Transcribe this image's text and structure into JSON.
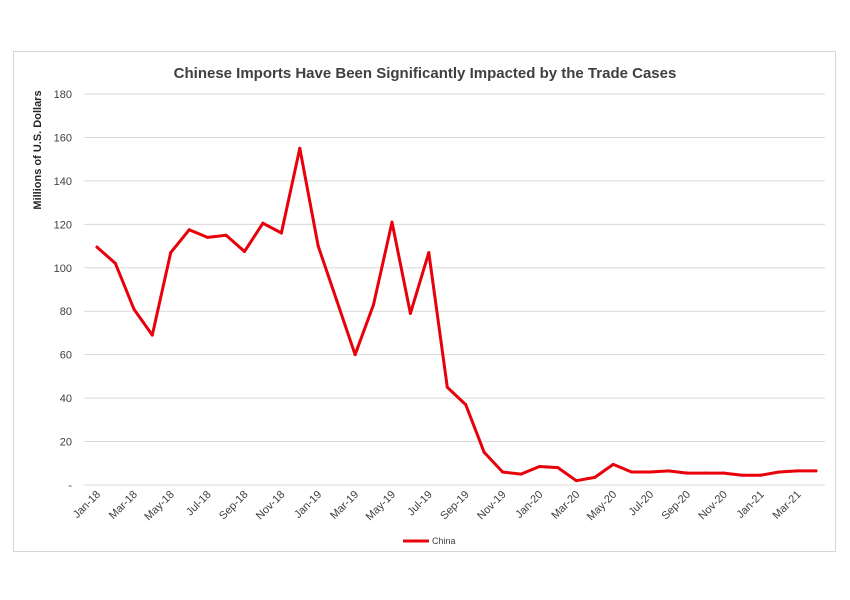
{
  "chart_data": {
    "type": "line",
    "title": "Chinese Imports Have Been Significantly Impacted by the Trade Cases",
    "xlabel": "",
    "ylabel": "Millions of U.S. Dollars",
    "ylim": [
      0,
      180
    ],
    "y_ticks": [
      "-",
      "20",
      "40",
      "60",
      "80",
      "100",
      "120",
      "140",
      "160",
      "180"
    ],
    "x_tick_labels": [
      "Jan-18",
      "Mar-18",
      "May-18",
      "Jul-18",
      "Sep-18",
      "Nov-18",
      "Jan-19",
      "Mar-19",
      "May-19",
      "Jul-19",
      "Sep-19",
      "Nov-19",
      "Jan-20",
      "Mar-20",
      "May-20",
      "Jul-20",
      "Sep-20",
      "Nov-20",
      "Jan-21",
      "Mar-21"
    ],
    "categories": [
      "Jan-18",
      "Feb-18",
      "Mar-18",
      "Apr-18",
      "May-18",
      "Jun-18",
      "Jul-18",
      "Aug-18",
      "Sep-18",
      "Oct-18",
      "Nov-18",
      "Dec-18",
      "Jan-19",
      "Feb-19",
      "Mar-19",
      "Apr-19",
      "May-19",
      "Jun-19",
      "Jul-19",
      "Aug-19",
      "Sep-19",
      "Oct-19",
      "Nov-19",
      "Dec-19",
      "Jan-20",
      "Feb-20",
      "Mar-20",
      "Apr-20",
      "May-20",
      "Jun-20",
      "Jul-20",
      "Aug-20",
      "Sep-20",
      "Oct-20",
      "Nov-20",
      "Dec-20",
      "Jan-21",
      "Feb-21",
      "Mar-21",
      "Apr-21"
    ],
    "grid": true,
    "legend_position": "bottom",
    "series": [
      {
        "name": "China",
        "color": "#e8000b",
        "values": [
          109.5,
          102,
          81,
          69,
          107,
          117.5,
          114,
          115,
          107.5,
          120.5,
          116,
          155,
          110,
          85,
          60,
          83,
          121,
          79,
          107,
          45,
          37,
          15,
          6,
          5,
          8.5,
          8,
          2,
          3.5,
          9.5,
          6,
          6,
          6.5,
          5.5,
          5.5,
          5.5,
          4.5,
          4.5,
          6,
          6.5,
          6.5
        ]
      }
    ]
  }
}
